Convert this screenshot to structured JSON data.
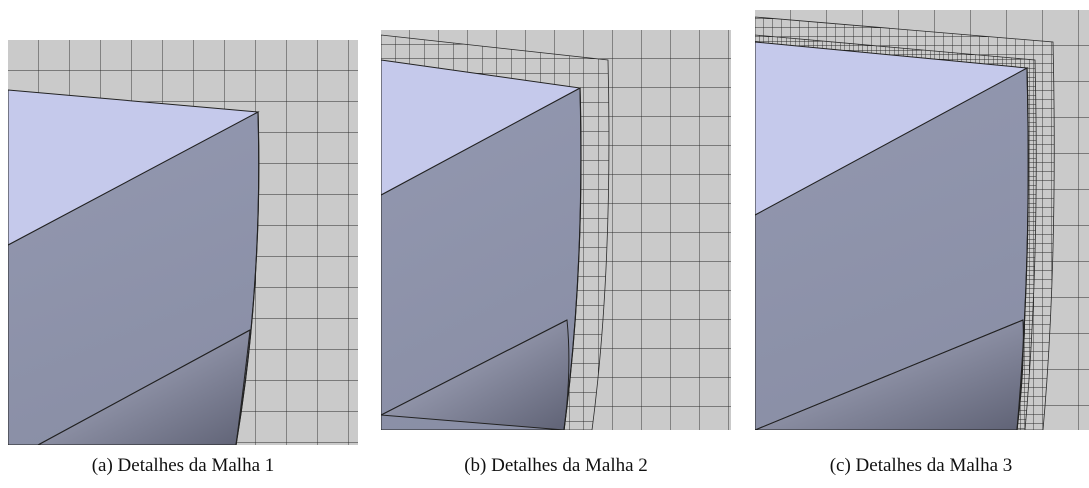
{
  "panels": [
    {
      "caption": "(a) Detalhes da Malha 1"
    },
    {
      "caption": "(b) Detalhes da Malha 2"
    },
    {
      "caption": "(c) Detalhes da Malha 3"
    }
  ]
}
